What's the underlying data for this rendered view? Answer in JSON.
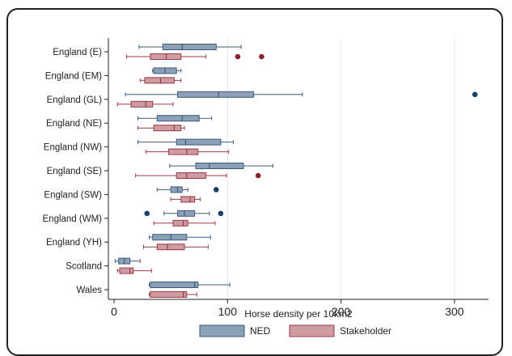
{
  "chart_data": {
    "type": "boxplot",
    "orientation": "horizontal",
    "title": "",
    "xlabel": "Horse density per 10km2",
    "ylabel": "",
    "xlim": [
      -5,
      330
    ],
    "xticks": [
      0,
      100,
      200,
      300
    ],
    "grid": true,
    "legend_position": "bottom",
    "categories": [
      "England (E)",
      "England (EM)",
      "England (GL)",
      "England (NE)",
      "England (NW)",
      "England (SE)",
      "England (SW)",
      "England (WM)",
      "England (YH)",
      "Scotland",
      "Wales"
    ],
    "series": [
      {
        "name": "NED",
        "color": "#8ca0b8",
        "stroke": "#3d5a7a",
        "outlier_color": "#1d3f66",
        "boxes": [
          {
            "min": 22,
            "q1": 43,
            "median": 60,
            "q3": 90,
            "max": 112,
            "outliers": []
          },
          {
            "min": 34,
            "q1": 35,
            "median": 45,
            "q3": 55,
            "max": 59,
            "outliers": []
          },
          {
            "min": 10,
            "q1": 56,
            "median": 92,
            "q3": 123,
            "max": 166,
            "outliers": [
              318
            ]
          },
          {
            "min": 21,
            "q1": 38,
            "median": 60,
            "q3": 75,
            "max": 86,
            "outliers": []
          },
          {
            "min": 21,
            "q1": 55,
            "median": 63,
            "q3": 94,
            "max": 105,
            "outliers": []
          },
          {
            "min": 49,
            "q1": 72,
            "median": 84,
            "q3": 114,
            "max": 140,
            "outliers": []
          },
          {
            "min": 38,
            "q1": 50,
            "median": 56,
            "q3": 60,
            "max": 65,
            "outliers": [
              90
            ]
          },
          {
            "min": 44,
            "q1": 56,
            "median": 62,
            "q3": 71,
            "max": 84,
            "outliers": [
              29,
              94
            ]
          },
          {
            "min": 31,
            "q1": 34,
            "median": 50,
            "q3": 64,
            "max": 85,
            "outliers": []
          },
          {
            "min": 1,
            "q1": 4,
            "median": 9,
            "q3": 14,
            "max": 23,
            "outliers": []
          },
          {
            "min": 31,
            "q1": 32,
            "median": 71,
            "q3": 74,
            "max": 102,
            "outliers": []
          }
        ]
      },
      {
        "name": "Stakeholder",
        "color": "#cc9ca2",
        "stroke": "#9b3a44",
        "outlier_color": "#8e2330",
        "boxes": [
          {
            "min": 11,
            "q1": 32,
            "median": 46,
            "q3": 59,
            "max": 81,
            "outliers": [
              109,
              130
            ]
          },
          {
            "min": 23,
            "q1": 27,
            "median": 41,
            "q3": 53,
            "max": 59,
            "outliers": []
          },
          {
            "min": 3,
            "q1": 15,
            "median": 28,
            "q3": 34,
            "max": 52,
            "outliers": []
          },
          {
            "min": 21,
            "q1": 35,
            "median": 53,
            "q3": 59,
            "max": 62,
            "outliers": []
          },
          {
            "min": 28,
            "q1": 48,
            "median": 64,
            "q3": 74,
            "max": 101,
            "outliers": []
          },
          {
            "min": 19,
            "q1": 55,
            "median": 64,
            "q3": 81,
            "max": 99,
            "outliers": [
              127
            ]
          },
          {
            "min": 50,
            "q1": 59,
            "median": 67,
            "q3": 71,
            "max": 76,
            "outliers": []
          },
          {
            "min": 35,
            "q1": 52,
            "median": 61,
            "q3": 65,
            "max": 89,
            "outliers": []
          },
          {
            "min": 26,
            "q1": 38,
            "median": 47,
            "q3": 62,
            "max": 83,
            "outliers": []
          },
          {
            "min": 3,
            "q1": 5,
            "median": 14,
            "q3": 17,
            "max": 33,
            "outliers": []
          },
          {
            "min": 31,
            "q1": 32,
            "median": 61,
            "q3": 64,
            "max": 73,
            "outliers": []
          }
        ]
      }
    ]
  }
}
